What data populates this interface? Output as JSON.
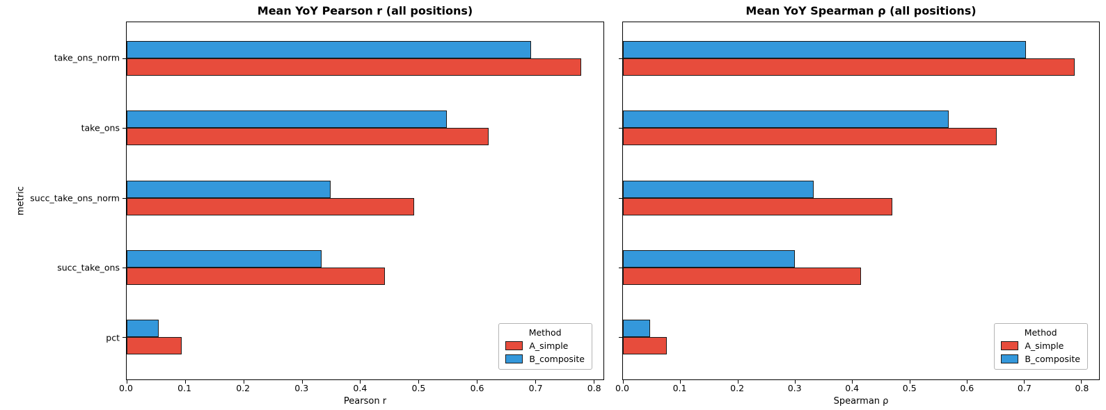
{
  "figure": {
    "background": "#ffffff",
    "bar_edge_color": "#1a1a1a"
  },
  "legend": {
    "title": "Method",
    "entries": [
      {
        "label": "A_simple",
        "color": "#e74c3c"
      },
      {
        "label": "B_composite",
        "color": "#3498db"
      }
    ]
  },
  "chart_data": [
    {
      "type": "bar",
      "orientation": "horizontal",
      "title": "Mean YoY Pearson r (all positions)",
      "xlabel": "Pearson r",
      "ylabel": "metric",
      "categories": [
        "take_ons_norm",
        "take_ons",
        "succ_take_ons_norm",
        "succ_take_ons",
        "pct"
      ],
      "series": [
        {
          "name": "A_simple",
          "color": "#e74c3c",
          "values": [
            0.779,
            0.62,
            0.492,
            0.443,
            0.094
          ]
        },
        {
          "name": "B_composite",
          "color": "#3498db",
          "values": [
            0.693,
            0.549,
            0.35,
            0.334,
            0.055
          ]
        }
      ],
      "xlim": [
        0,
        0.817
      ],
      "xticks": [
        0.0,
        0.1,
        0.2,
        0.3,
        0.4,
        0.5,
        0.6,
        0.7,
        0.8
      ],
      "grid": false,
      "legend_title": "Method",
      "legend_position": "lower right",
      "show_ytick_labels": true
    },
    {
      "type": "bar",
      "orientation": "horizontal",
      "title": "Mean YoY Spearman ρ (all positions)",
      "xlabel": "Spearman ρ",
      "ylabel": "",
      "categories": [
        "take_ons_norm",
        "take_ons",
        "succ_take_ons_norm",
        "succ_take_ons",
        "pct"
      ],
      "series": [
        {
          "name": "A_simple",
          "color": "#e74c3c",
          "values": [
            0.789,
            0.653,
            0.47,
            0.415,
            0.076
          ]
        },
        {
          "name": "B_composite",
          "color": "#3498db",
          "values": [
            0.704,
            0.569,
            0.333,
            0.3,
            0.047
          ]
        }
      ],
      "xlim": [
        0,
        0.831
      ],
      "xticks": [
        0.0,
        0.1,
        0.2,
        0.3,
        0.4,
        0.5,
        0.6,
        0.7,
        0.8
      ],
      "grid": false,
      "legend_title": "Method",
      "legend_position": "lower right",
      "show_ytick_labels": false
    }
  ]
}
